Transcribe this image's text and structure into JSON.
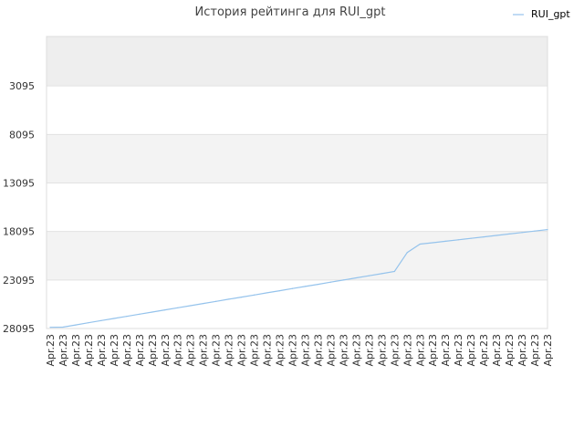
{
  "chart_data": {
    "type": "line",
    "title": "История рейтинга для RUI_gpt",
    "xlabel": "",
    "ylabel": "",
    "y_inverted": true,
    "ylim": [
      28095,
      -2000
    ],
    "yticks": [
      3095,
      8095,
      13095,
      18095,
      23095,
      28095
    ],
    "x": [
      "Apr.23",
      "Apr.23",
      "Apr.23",
      "Apr.23",
      "Apr.23",
      "Apr.23",
      "Apr.23",
      "Apr.23",
      "Apr.23",
      "Apr.23",
      "Apr.23",
      "Apr.23",
      "Apr.23",
      "Apr.23",
      "Apr.23",
      "Apr.23",
      "Apr.23",
      "Apr.23",
      "Apr.23",
      "Apr.23",
      "Apr.23",
      "Apr.23",
      "Apr.23",
      "Apr.23",
      "Apr.23",
      "Apr.23",
      "Apr.23",
      "Apr.23",
      "Apr.23",
      "Apr.23",
      "Apr.23",
      "Apr.23",
      "Apr.23",
      "Apr.23",
      "Apr.23",
      "Apr.23",
      "Apr.23",
      "Apr.23",
      "Apr.23",
      "Apr.23"
    ],
    "series": [
      {
        "name": "RUI_gpt",
        "color": "#95c3ec",
        "values": [
          27970,
          27950,
          27730,
          27500,
          27280,
          27060,
          26840,
          26620,
          26400,
          26180,
          25960,
          25740,
          25520,
          25300,
          25080,
          24860,
          24640,
          24420,
          24200,
          23980,
          23760,
          23540,
          23320,
          23100,
          22880,
          22660,
          22440,
          22220,
          20260,
          19400,
          19250,
          19100,
          18950,
          18800,
          18650,
          18500,
          18350,
          18200,
          18050,
          17900
        ]
      }
    ],
    "grid": true,
    "legend_position": "top-right",
    "band_colors": [
      "#eeeeee",
      "#ffffff",
      "#f3f3f3",
      "#ffffff",
      "#f3f3f3",
      "#ffffff"
    ]
  }
}
